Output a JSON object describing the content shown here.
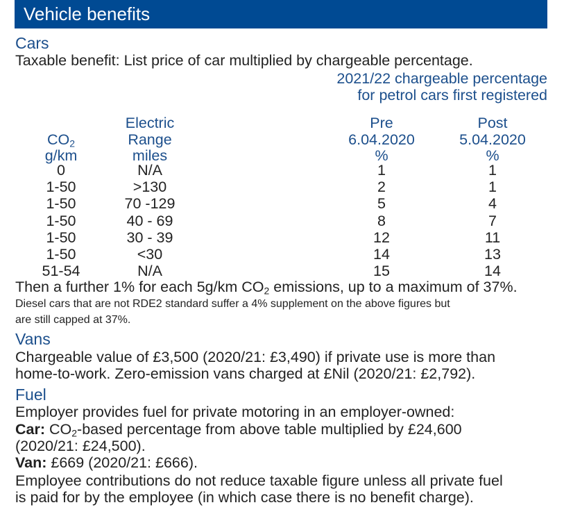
{
  "header": {
    "title": "Vehicle benefits"
  },
  "cars": {
    "heading": "Cars",
    "intro": "Taxable benefit: List price of car multiplied by chargeable percentage.",
    "table_title_1": "2021/22 chargeable percentage",
    "table_title_2": "for petrol cars first registered",
    "columns": {
      "co2": {
        "line1": "CO",
        "sub": "2",
        "line2": "g/km"
      },
      "range": {
        "line1": "Electric",
        "line2": "Range",
        "line3": "miles"
      },
      "pre": {
        "line1": "Pre",
        "line2": "6.04.2020",
        "line3": "%"
      },
      "post": {
        "line1": "Post",
        "line2": "5.04.2020",
        "line3": "%"
      }
    },
    "rows": [
      {
        "co2": "0",
        "range": "N/A",
        "pre": "1",
        "post": "1"
      },
      {
        "co2": "1-50",
        "range": ">130",
        "pre": "2",
        "post": "1"
      },
      {
        "co2": "1-50",
        "range": "70 -129",
        "pre": "5",
        "post": "4"
      },
      {
        "co2": "1-50",
        "range": "40 - 69",
        "pre": "8",
        "post": "7"
      },
      {
        "co2": "1-50",
        "range": "30 - 39",
        "pre": "12",
        "post": "11"
      },
      {
        "co2": "1-50",
        "range": "<30",
        "pre": "14",
        "post": "13"
      },
      {
        "co2": "51-54",
        "range": "N/A",
        "pre": "15",
        "post": "14"
      }
    ],
    "further_a": "Then a further 1% for each 5g/km CO",
    "further_sub": "2",
    "further_b": " emissions, up to a maximum of 37%.",
    "diesel_1": "Diesel cars that are not RDE2 standard suffer a 4% supplement on the above figures but",
    "diesel_2": "are still capped at 37%."
  },
  "vans": {
    "heading": "Vans",
    "line1": "Chargeable value of £3,500 (2020/21: £3,490) if private use is more than",
    "line2": "home-to-work. Zero-emission vans charged at £Nil (2020/21: £2,792)."
  },
  "fuel": {
    "heading": "Fuel",
    "line1": "Employer provides fuel for private motoring in an employer-owned:",
    "car_label": "Car:",
    "car_a": " CO",
    "car_sub": "2",
    "car_b": "-based percentage from above table multiplied by £24,600",
    "car_line2": "(2020/21: £24,500).",
    "van_label": "Van:",
    "van_text": " £669 (2020/21: £666).",
    "emp_1": "Employee contributions do not reduce taxable figure unless all private fuel",
    "emp_2": "is paid for by the employee (in which case there is no benefit charge)."
  },
  "colors": {
    "header_bg": "#004a93",
    "accent_text": "#1c4f8c",
    "body_text": "#222222"
  }
}
